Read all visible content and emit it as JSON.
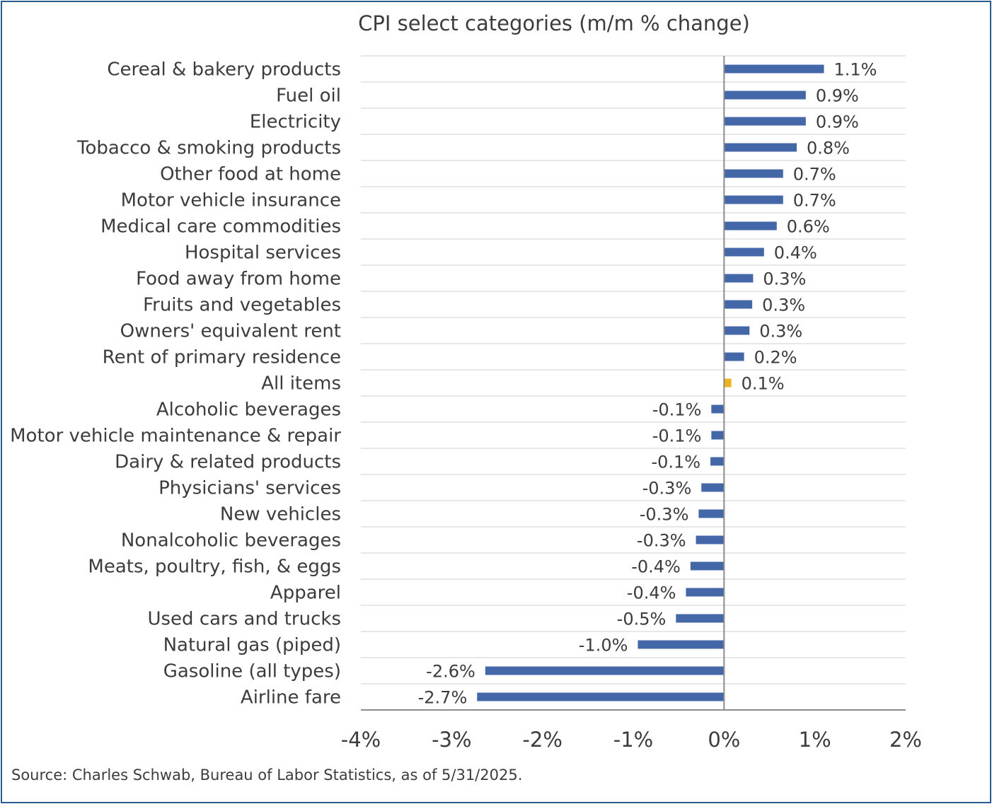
{
  "chart_data": {
    "type": "bar",
    "orientation": "horizontal",
    "title": "CPI select categories (m/m % change)",
    "categories": [
      "Cereal & bakery products",
      "Fuel oil",
      "Electricity",
      "Tobacco & smoking products",
      "Other food at home",
      "Motor vehicle insurance",
      "Medical care commodities",
      "Hospital services",
      "Food away from home",
      "Fruits and vegetables",
      "Owners' equivalent rent",
      "Rent of primary residence",
      "All items",
      "Alcoholic beverages",
      "Motor vehicle maintenance & repair",
      "Dairy & related products",
      "Physicians' services",
      "New vehicles",
      "Nonalcoholic beverages",
      "Meats, poultry, fish, & eggs",
      "Apparel",
      "Used cars and trucks",
      "Natural gas (piped)",
      "Gasoline (all types)",
      "Airline fare"
    ],
    "values": [
      1.1,
      0.9,
      0.9,
      0.8,
      0.65,
      0.65,
      0.58,
      0.44,
      0.32,
      0.31,
      0.28,
      0.22,
      0.08,
      -0.14,
      -0.14,
      -0.15,
      -0.25,
      -0.28,
      -0.31,
      -0.37,
      -0.42,
      -0.53,
      -0.95,
      -2.63,
      -2.72
    ],
    "value_labels": [
      "1.1%",
      "0.9%",
      "0.9%",
      "0.8%",
      "0.7%",
      "0.7%",
      "0.6%",
      "0.4%",
      "0.3%",
      "0.3%",
      "0.3%",
      "0.2%",
      "0.1%",
      "-0.1%",
      "-0.1%",
      "-0.1%",
      "-0.3%",
      "-0.3%",
      "-0.3%",
      "-0.4%",
      "-0.4%",
      "-0.5%",
      "-1.0%",
      "-2.6%",
      "-2.7%"
    ],
    "highlight_category": "All items",
    "xlim": [
      -4,
      2
    ],
    "xticks": [
      -4,
      -3,
      -2,
      -1,
      0,
      1,
      2
    ],
    "xtick_labels": [
      "-4%",
      "-3%",
      "-2%",
      "-1%",
      "0%",
      "1%",
      "2%"
    ],
    "grid": "horizontal",
    "legend": "none",
    "source": "Source: Charles Schwab, Bureau of Labor Statistics, as of  5/31/2025."
  },
  "colors": {
    "bar": "#4467a7",
    "highlight_bar": "#efb21f",
    "grid": "#d9d9d9",
    "axis": "#8c8c8c",
    "text": "#3c3c3c",
    "frame_border": "#2b5c8f"
  }
}
